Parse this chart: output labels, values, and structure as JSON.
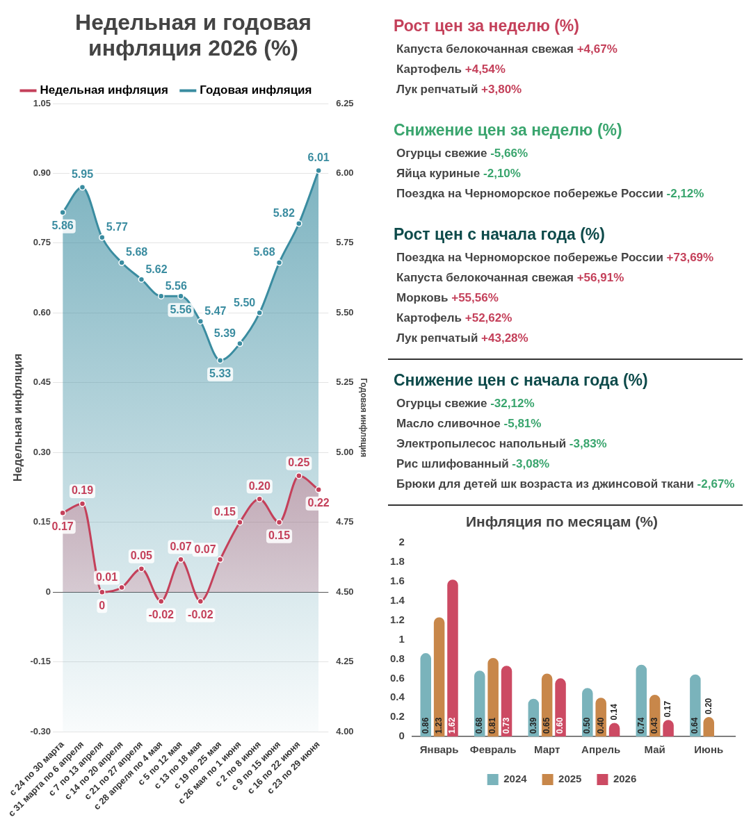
{
  "chart_data": [
    {
      "type": "area",
      "title": "Недельная и годовая инфляция 2026 (%)",
      "ylabel": "Недельная инфляция",
      "y2label": "Годовая инфляция",
      "categories": [
        "с 24 по 30 марта",
        "с 31 марта по 6 апреля",
        "с 7 по 13 апреля",
        "с 14 по 20 апреля",
        "с 21 по 27 апреля",
        "с 28 апреля по 4 мая",
        "с 5 по 12 мая",
        "с 13 по 18 мая",
        "с 19 по 25 мая",
        "с 26 мая по 1 июня",
        "с 2 по 8 июня",
        "с 9 по 15 июня",
        "с 16 по 22 июня",
        "с 23 по 29 июня"
      ],
      "series": [
        {
          "name": "Недельная инфляция",
          "type": "area",
          "axis": "y",
          "color": "#c4405a",
          "values": [
            0.17,
            0.19,
            0,
            0.01,
            0.05,
            -0.02,
            0.07,
            -0.02,
            0.07,
            0.15,
            0.2,
            0.15,
            0.25,
            0.22
          ],
          "value_labels": [
            "0.17",
            "0.19",
            "0",
            "0.01",
            "0.05",
            "-0.02",
            "0.07",
            "-0.02",
            "0.07",
            "0.15",
            "0.20",
            "0.15",
            "0.25",
            "0.22"
          ]
        },
        {
          "name": "Годовая инфляция",
          "type": "area",
          "axis": "y2",
          "color": "#3a8ca0",
          "values": [
            5.86,
            5.95,
            5.77,
            5.68,
            5.62,
            5.56,
            5.56,
            5.47,
            5.33,
            5.39,
            5.5,
            5.68,
            5.82,
            6.01
          ],
          "value_labels": [
            "5.86",
            "5.95",
            "5.77",
            "5.68",
            "5.62",
            "5.56",
            "5.56",
            "5.47",
            "5.33",
            "5.39",
            "5.50",
            "5.68",
            "5.82",
            "6.01"
          ]
        }
      ],
      "ylim": [
        -0.3,
        1.05
      ],
      "yticks": [
        {
          "value": -0.3,
          "label": "-0.30"
        },
        {
          "value": -0.15,
          "label": "-0.15"
        },
        0,
        {
          "value": 0.15,
          "label": "0.15"
        },
        {
          "value": 0.3,
          "label": "0.30"
        },
        {
          "value": 0.45,
          "label": "0.45"
        },
        {
          "value": 0.6,
          "label": "0.60"
        },
        {
          "value": 0.75,
          "label": "0.75"
        },
        {
          "value": 0.9,
          "label": "0.90"
        },
        {
          "value": 1.05,
          "label": "1.05"
        }
      ],
      "y2lim": [
        4,
        6.25
      ],
      "y2ticks": [
        {
          "value": 4,
          "label": "4.00"
        },
        {
          "value": 4.25,
          "label": "4.25"
        },
        {
          "value": 4.5,
          "label": "4.50"
        },
        {
          "value": 4.75,
          "label": "4.75"
        },
        {
          "value": 5,
          "label": "5.00"
        },
        {
          "value": 5.25,
          "label": "5.25"
        },
        {
          "value": 5.5,
          "label": "5.50"
        },
        {
          "value": 5.75,
          "label": "5.75"
        },
        {
          "value": 6,
          "label": "6.00"
        },
        {
          "value": 6.25,
          "label": "6.25"
        }
      ],
      "grid": "y",
      "legend": "top left",
      "marker": "circle",
      "line_style": "solid"
    },
    {
      "type": "other",
      "title": "Рост цен за неделю (%)",
      "color": "#c4405a",
      "annotations": [
        "Капуста белокочанная свежая +4,67%",
        "Картофель +4,54%",
        "Лук репчатый +3,80%"
      ]
    },
    {
      "type": "other",
      "title": "Снижение цен за неделю (%)",
      "color": "#3aa56e",
      "annotations": [
        "Огурцы свежие -5,66%",
        "Яйца куриные -2,10%",
        "Поездка на Черноморское побережье России -2,12%"
      ]
    },
    {
      "type": "other",
      "title": "Рост цен с начала года (%)",
      "color": "#c4405a",
      "annotations": [
        "Поездка на Черноморское побережье России +73,69%",
        "Капуста белокочанная свежая +56,91%",
        "Морковь +55,56%",
        "Картофель +52,62%",
        "Лук репчатый +43,28%"
      ]
    },
    {
      "type": "other",
      "title": "Снижение цен с начала года (%)",
      "color": "#3aa56e",
      "annotations": [
        "Огурцы свежие -32,12%",
        "Масло сливочное -5,81%",
        "Электропылесос напольный -3,83%",
        "Рис шлифованный -3,08%",
        "Брюки для детей шк возраста из джинсовой ткани -2,67%"
      ]
    },
    {
      "type": "bar",
      "title": "Инфляция по месяцам (%)",
      "categories": [
        "Январь",
        "Февраль",
        "Март",
        "Апрель",
        "Май",
        "Июнь"
      ],
      "series": [
        {
          "name": "2024",
          "color": "#7ab3bb",
          "values": [
            0.86,
            0.68,
            0.39,
            0.5,
            0.74,
            0.64
          ],
          "value_labels": [
            "0.86",
            "0.68",
            "0.39",
            "0.50",
            "0.74",
            "0.64"
          ]
        },
        {
          "name": "2025",
          "color": "#c8874a",
          "values": [
            1.23,
            0.81,
            0.65,
            0.4,
            0.43,
            0.2
          ],
          "value_labels": [
            "1.23",
            "0.81",
            "0.65",
            "0.40",
            "0.43",
            "0.20"
          ]
        },
        {
          "name": "2026",
          "color": "#cc4a63",
          "values": [
            1.62,
            0.73,
            0.6,
            0.14,
            0.17,
            null
          ],
          "value_labels": [
            "1.62",
            "0.73",
            "0.60",
            "0.14",
            "0.17",
            null
          ]
        }
      ],
      "ylim": [
        0,
        2
      ],
      "yticks": [
        0,
        0.2,
        0.4,
        0.6,
        0.8,
        1,
        1.2,
        1.4,
        1.6,
        1.8,
        2
      ],
      "legend": "bottom"
    }
  ]
}
